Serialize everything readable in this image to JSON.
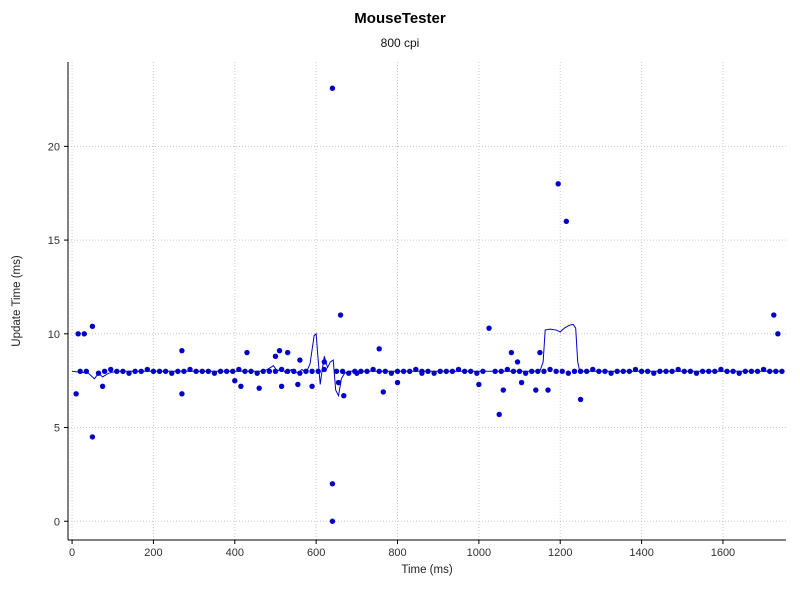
{
  "window": {
    "app": "MouseTester"
  },
  "chart_data": {
    "type": "scatter",
    "title": "MouseTester",
    "subtitle": "800 cpi",
    "xlabel": "Time (ms)",
    "ylabel": "Update Time (ms)",
    "xlim": [
      -10,
      1755
    ],
    "ylim": [
      -1,
      24.5
    ],
    "xticks": [
      0,
      200,
      400,
      600,
      800,
      1000,
      1200,
      1400,
      1600
    ],
    "yticks": [
      0,
      5,
      10,
      15,
      20
    ],
    "grid": "dotted",
    "grid_color": "#c8c8c8",
    "axis_color": "#000000",
    "tick_label_color": "#303030",
    "point_color": "#0000cc",
    "line_color": "#0000cc",
    "scatter": [
      [
        20,
        8
      ],
      [
        35,
        8
      ],
      [
        65,
        7.9
      ],
      [
        80,
        8
      ],
      [
        95,
        8.1
      ],
      [
        110,
        8
      ],
      [
        125,
        8
      ],
      [
        140,
        7.9
      ],
      [
        155,
        8
      ],
      [
        170,
        8
      ],
      [
        185,
        8.1
      ],
      [
        200,
        8
      ],
      [
        215,
        8
      ],
      [
        230,
        8
      ],
      [
        245,
        7.9
      ],
      [
        260,
        8
      ],
      [
        275,
        8
      ],
      [
        290,
        8.1
      ],
      [
        305,
        8
      ],
      [
        320,
        8
      ],
      [
        335,
        8
      ],
      [
        350,
        7.9
      ],
      [
        365,
        8
      ],
      [
        380,
        8
      ],
      [
        395,
        8
      ],
      [
        410,
        8.1
      ],
      [
        425,
        8
      ],
      [
        440,
        8
      ],
      [
        455,
        7.9
      ],
      [
        470,
        8
      ],
      [
        485,
        8
      ],
      [
        500,
        8
      ],
      [
        515,
        8.1
      ],
      [
        530,
        8
      ],
      [
        545,
        8
      ],
      [
        560,
        7.9
      ],
      [
        575,
        8
      ],
      [
        590,
        8
      ],
      [
        605,
        8
      ],
      [
        620,
        8.1
      ],
      [
        650,
        8
      ],
      [
        665,
        8
      ],
      [
        680,
        7.9
      ],
      [
        695,
        8
      ],
      [
        710,
        8
      ],
      [
        725,
        8
      ],
      [
        740,
        8.1
      ],
      [
        755,
        8
      ],
      [
        770,
        8
      ],
      [
        785,
        7.9
      ],
      [
        800,
        8
      ],
      [
        815,
        8
      ],
      [
        830,
        8
      ],
      [
        845,
        8.1
      ],
      [
        860,
        8
      ],
      [
        875,
        8
      ],
      [
        890,
        7.9
      ],
      [
        905,
        8
      ],
      [
        920,
        8
      ],
      [
        935,
        8
      ],
      [
        950,
        8.1
      ],
      [
        965,
        8
      ],
      [
        980,
        8
      ],
      [
        995,
        7.9
      ],
      [
        1010,
        8
      ],
      [
        1040,
        8
      ],
      [
        1055,
        8
      ],
      [
        1070,
        8.1
      ],
      [
        1085,
        8
      ],
      [
        1100,
        8
      ],
      [
        1115,
        7.9
      ],
      [
        1130,
        8
      ],
      [
        1145,
        8
      ],
      [
        1160,
        8
      ],
      [
        1175,
        8.1
      ],
      [
        1190,
        8
      ],
      [
        1205,
        8
      ],
      [
        1220,
        7.9
      ],
      [
        1235,
        8
      ],
      [
        1250,
        8
      ],
      [
        1265,
        8
      ],
      [
        1280,
        8.1
      ],
      [
        1295,
        8
      ],
      [
        1310,
        8
      ],
      [
        1325,
        7.9
      ],
      [
        1340,
        8
      ],
      [
        1355,
        8
      ],
      [
        1370,
        8
      ],
      [
        1385,
        8.1
      ],
      [
        1400,
        8
      ],
      [
        1415,
        8
      ],
      [
        1430,
        7.9
      ],
      [
        1445,
        8
      ],
      [
        1460,
        8
      ],
      [
        1475,
        8
      ],
      [
        1490,
        8.1
      ],
      [
        1505,
        8
      ],
      [
        1520,
        8
      ],
      [
        1535,
        7.9
      ],
      [
        1550,
        8
      ],
      [
        1565,
        8
      ],
      [
        1580,
        8
      ],
      [
        1595,
        8.1
      ],
      [
        1610,
        8
      ],
      [
        1625,
        8
      ],
      [
        1640,
        7.9
      ],
      [
        1655,
        8
      ],
      [
        1670,
        8
      ],
      [
        1685,
        8
      ],
      [
        1700,
        8.1
      ],
      [
        1715,
        8
      ],
      [
        1730,
        8
      ],
      [
        1745,
        8
      ],
      [
        10,
        6.8
      ],
      [
        15,
        10
      ],
      [
        30,
        10
      ],
      [
        50,
        10.4
      ],
      [
        50,
        4.5
      ],
      [
        75,
        7.2
      ],
      [
        270,
        9.1
      ],
      [
        270,
        6.8
      ],
      [
        400,
        7.5
      ],
      [
        415,
        7.2
      ],
      [
        430,
        9
      ],
      [
        460,
        7.1
      ],
      [
        500,
        8.8
      ],
      [
        510,
        9.1
      ],
      [
        515,
        7.2
      ],
      [
        530,
        9
      ],
      [
        555,
        7.3
      ],
      [
        560,
        8.6
      ],
      [
        590,
        7.2
      ],
      [
        620,
        8.5
      ],
      [
        640,
        23.1
      ],
      [
        640,
        2
      ],
      [
        640,
        0
      ],
      [
        655,
        7.4
      ],
      [
        660,
        11
      ],
      [
        668,
        6.7
      ],
      [
        700,
        7.9
      ],
      [
        755,
        9.2
      ],
      [
        765,
        6.9
      ],
      [
        800,
        7.4
      ],
      [
        860,
        7.9
      ],
      [
        1000,
        7.3
      ],
      [
        1025,
        10.3
      ],
      [
        1050,
        5.7
      ],
      [
        1060,
        7
      ],
      [
        1080,
        9
      ],
      [
        1095,
        8.5
      ],
      [
        1105,
        7.4
      ],
      [
        1140,
        7
      ],
      [
        1150,
        9
      ],
      [
        1170,
        7
      ],
      [
        1195,
        18
      ],
      [
        1215,
        16
      ],
      [
        1250,
        6.5
      ],
      [
        1725,
        11
      ],
      [
        1735,
        10
      ]
    ],
    "line": [
      [
        0,
        8
      ],
      [
        40,
        7.9
      ],
      [
        55,
        7.6
      ],
      [
        65,
        7.9
      ],
      [
        75,
        7.7
      ],
      [
        90,
        7.9
      ],
      [
        110,
        8
      ],
      [
        200,
        8
      ],
      [
        300,
        8
      ],
      [
        400,
        8
      ],
      [
        470,
        8
      ],
      [
        480,
        8.1
      ],
      [
        495,
        8.3
      ],
      [
        505,
        8
      ],
      [
        515,
        8.2
      ],
      [
        525,
        7.9
      ],
      [
        540,
        8.1
      ],
      [
        555,
        7.9
      ],
      [
        565,
        8.1
      ],
      [
        575,
        7.9
      ],
      [
        585,
        8.4
      ],
      [
        595,
        9.9
      ],
      [
        600,
        10
      ],
      [
        605,
        8.6
      ],
      [
        610,
        7.3
      ],
      [
        615,
        8.1
      ],
      [
        620,
        8.8
      ],
      [
        628,
        8.2
      ],
      [
        635,
        8.5
      ],
      [
        642,
        8.6
      ],
      [
        648,
        7
      ],
      [
        655,
        6.7
      ],
      [
        662,
        7.6
      ],
      [
        670,
        7.9
      ],
      [
        680,
        8
      ],
      [
        700,
        8
      ],
      [
        800,
        8
      ],
      [
        900,
        8
      ],
      [
        1000,
        8
      ],
      [
        1100,
        8
      ],
      [
        1150,
        8
      ],
      [
        1158,
        8.5
      ],
      [
        1163,
        10.2
      ],
      [
        1175,
        10.25
      ],
      [
        1190,
        10.2
      ],
      [
        1200,
        10.1
      ],
      [
        1210,
        10.3
      ],
      [
        1222,
        10.45
      ],
      [
        1232,
        10.5
      ],
      [
        1238,
        10.3
      ],
      [
        1243,
        8.5
      ],
      [
        1248,
        8
      ],
      [
        1300,
        8
      ],
      [
        1400,
        8
      ],
      [
        1500,
        8
      ],
      [
        1600,
        8
      ],
      [
        1750,
        8
      ]
    ]
  }
}
